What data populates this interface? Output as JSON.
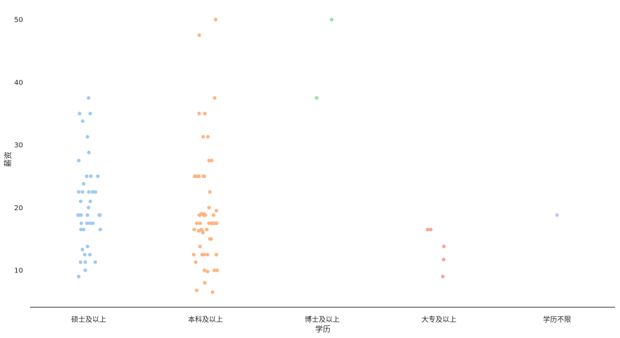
{
  "chart_data": {
    "type": "scatter",
    "subtype": "strip",
    "xlabel": "学历",
    "ylabel": "薪资",
    "ylim": [
      4,
      55
    ],
    "yticks": [
      10,
      20,
      30,
      40,
      50
    ],
    "grid": false,
    "legend": "none",
    "categories": [
      "硕士及以上",
      "本科及以上",
      "博士及以上",
      "大专及以上",
      "学历不限"
    ],
    "colors": [
      "#a1c9f4",
      "#ffb482",
      "#8de5a1",
      "#ff9f9b",
      "#d0bbff"
    ],
    "series": [
      {
        "values": [
          37.5,
          35,
          35,
          33.8,
          31.3,
          28.8,
          27.5,
          25,
          25,
          25,
          23.8,
          22.5,
          22.5,
          22.5,
          22.5,
          22.5,
          22.5,
          21,
          21,
          20,
          18.8,
          18.8,
          18.8,
          18.8,
          18.8,
          18.8,
          18.8,
          17.5,
          17.5,
          17.5,
          17.5,
          16.5,
          16.5,
          16.5,
          13.8,
          13.3,
          12.5,
          12.5,
          11.3,
          11.3,
          11.3,
          10,
          9
        ]
      },
      {
        "values": [
          50,
          47.5,
          37.5,
          35,
          35,
          31.3,
          31.3,
          27.5,
          27.5,
          25,
          25,
          25,
          25,
          25,
          25,
          22.5,
          20,
          19.5,
          19,
          19,
          18.8,
          18.8,
          18.8,
          18.8,
          18.8,
          18.8,
          18.8,
          17.5,
          17.5,
          17.5,
          17.5,
          17.5,
          17.5,
          17.5,
          17.5,
          17.5,
          17.5,
          16.5,
          16.5,
          16.5,
          16.3,
          16.3,
          16,
          15,
          15,
          13.8,
          12.5,
          12.5,
          12.5,
          12.5,
          12.5,
          11.3,
          10,
          10,
          10,
          9.8,
          8,
          6.8,
          6.5
        ]
      },
      {
        "values": [
          50,
          37.5
        ]
      },
      {
        "values": [
          16.5,
          16.5,
          13.8,
          11.7,
          9
        ]
      },
      {
        "values": [
          18.8
        ]
      }
    ]
  }
}
